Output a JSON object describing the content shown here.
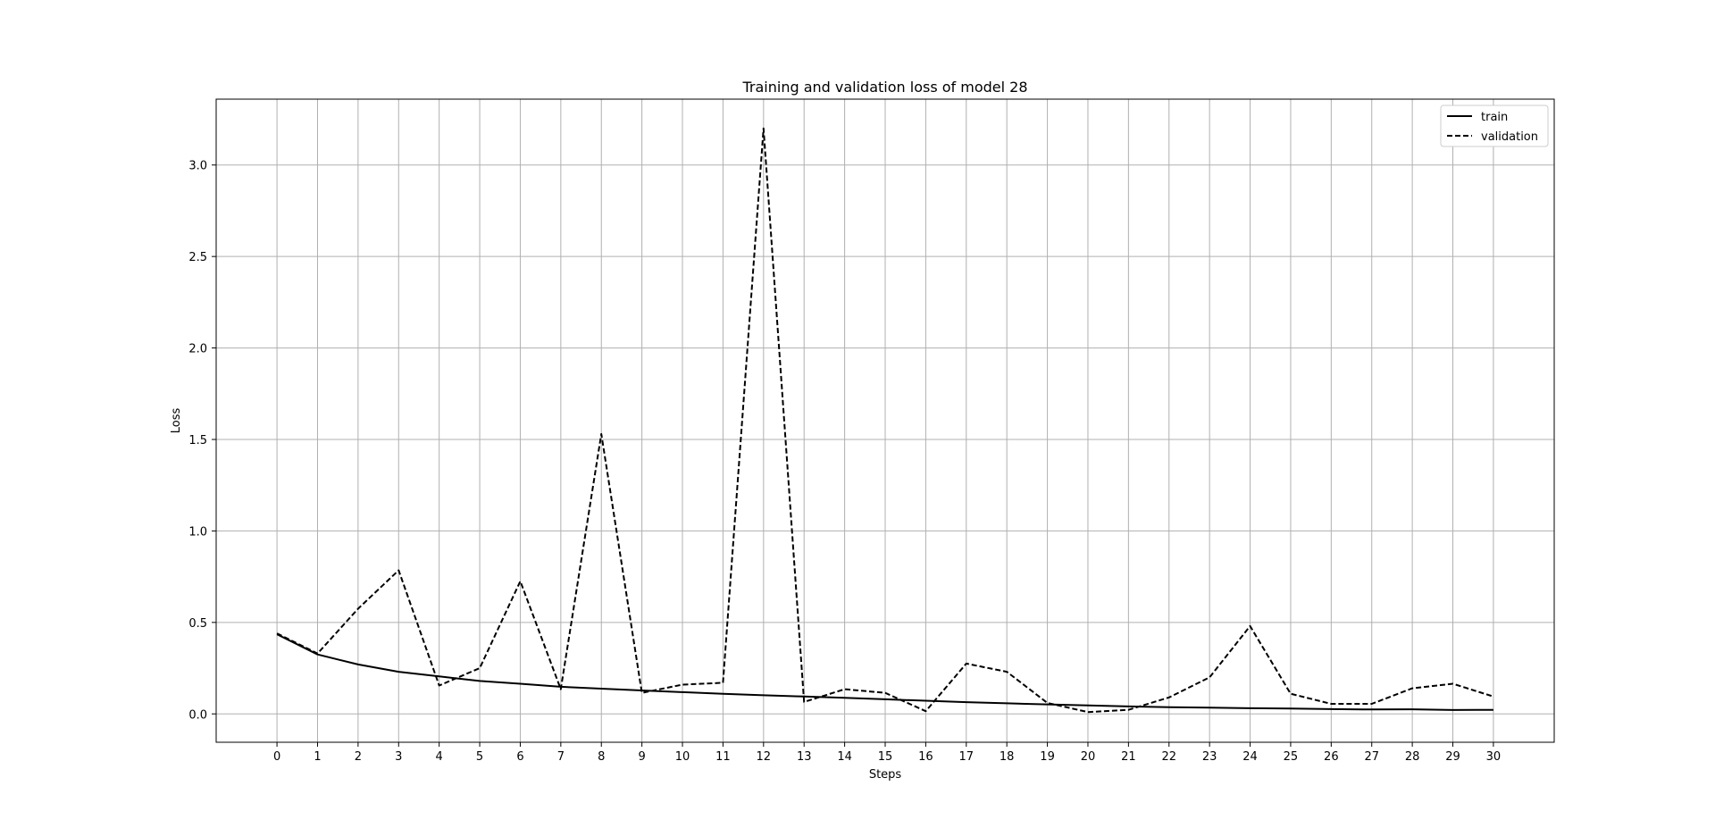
{
  "chart_data": {
    "type": "line",
    "title": "Training and validation loss of model 28",
    "xlabel": "Steps",
    "ylabel": "Loss",
    "xlim": [
      -1.5,
      31.5
    ],
    "ylim": [
      -0.155,
      3.36
    ],
    "grid": true,
    "legend_position": "top-right",
    "x": [
      0,
      1,
      2,
      3,
      4,
      5,
      6,
      7,
      8,
      9,
      10,
      11,
      12,
      13,
      14,
      15,
      16,
      17,
      18,
      19,
      20,
      21,
      22,
      23,
      24,
      25,
      26,
      27,
      28,
      29,
      30
    ],
    "x_tick_labels": [
      "0",
      "1",
      "2",
      "3",
      "4",
      "5",
      "6",
      "7",
      "8",
      "9",
      "10",
      "11",
      "12",
      "13",
      "14",
      "15",
      "16",
      "17",
      "18",
      "19",
      "20",
      "21",
      "22",
      "23",
      "24",
      "25",
      "26",
      "27",
      "28",
      "29",
      "30"
    ],
    "y_ticks": [
      0.0,
      0.5,
      1.0,
      1.5,
      2.0,
      2.5,
      3.0
    ],
    "y_tick_labels": [
      "0.0",
      "0.5",
      "1.0",
      "1.5",
      "2.0",
      "2.5",
      "3.0"
    ],
    "series": [
      {
        "name": "train",
        "style": "solid",
        "color": "#000000",
        "values": [
          0.435,
          0.325,
          0.27,
          0.23,
          0.205,
          0.18,
          0.165,
          0.148,
          0.138,
          0.128,
          0.119,
          0.11,
          0.102,
          0.095,
          0.088,
          0.08,
          0.072,
          0.064,
          0.058,
          0.052,
          0.046,
          0.041,
          0.037,
          0.034,
          0.031,
          0.029,
          0.026,
          0.024,
          0.025,
          0.021,
          0.022
        ]
      },
      {
        "name": "validation",
        "style": "dashed",
        "color": "#000000",
        "values": [
          0.44,
          0.33,
          0.575,
          0.785,
          0.155,
          0.25,
          0.725,
          0.135,
          1.53,
          0.115,
          0.16,
          0.17,
          3.2,
          0.065,
          0.135,
          0.115,
          0.015,
          0.275,
          0.23,
          0.06,
          0.01,
          0.022,
          0.09,
          0.2,
          0.48,
          0.11,
          0.055,
          0.055,
          0.14,
          0.165,
          0.095
        ]
      }
    ]
  }
}
